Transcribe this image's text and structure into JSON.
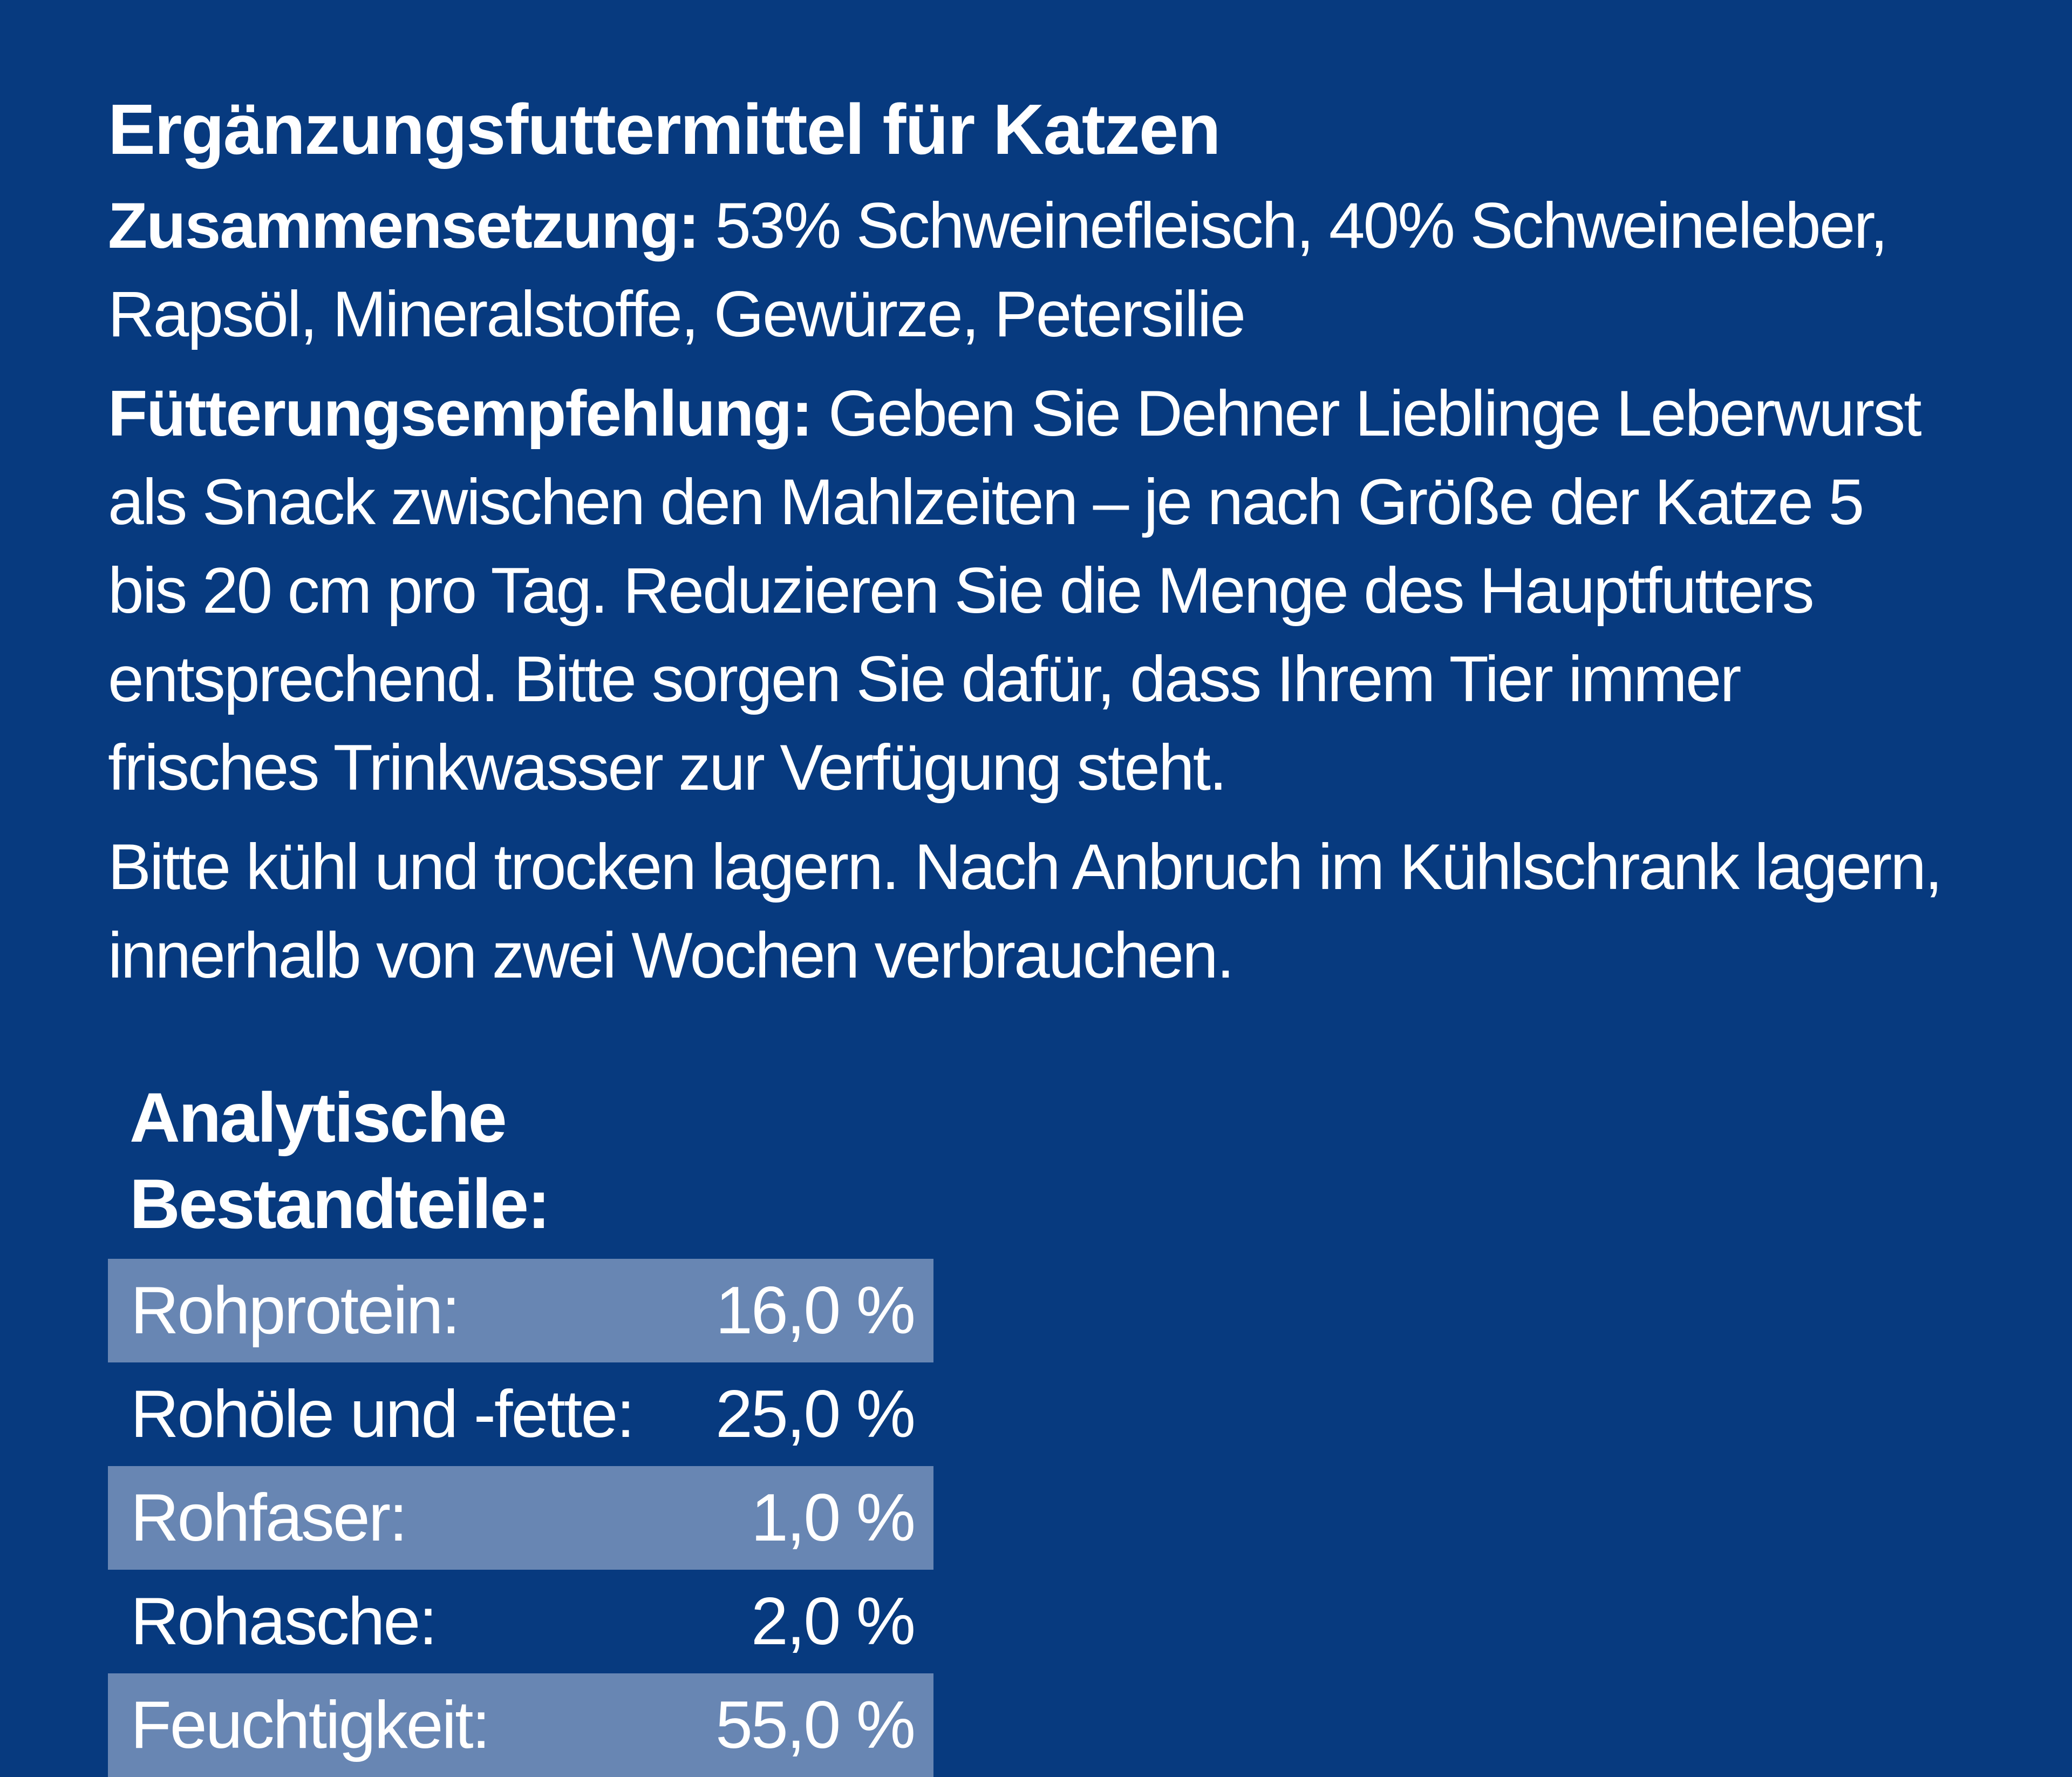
{
  "product_type": "Ergänzungsfuttermittel für Katzen",
  "composition": {
    "label": "Zusammensetzung:",
    "text": "53% Schweinefleisch, 40% Schweineleber, Rapsöl, Mineralstoffe, Gewürze, Petersilie"
  },
  "feeding": {
    "label": "Fütterungsempfehlung:",
    "text": "Geben Sie Dehner Lieblinge Leberwurst als Snack zwischen den Mahlzeiten – je nach Größe der Katze 5 bis 20 cm pro Tag. Reduzieren Sie die Menge des Hauptfutters entsprechend. Bitte sorgen Sie dafür, dass Ihrem Tier immer frisches Trinkwasser zur Verfügung steht."
  },
  "storage": "Bitte kühl und trocken lagern. Nach Anbruch im Kühlschrank lagern, innerhalb von zwei Wochen verbrauchen.",
  "analysis": {
    "heading": "Analytische Bestandteile:",
    "rows": [
      {
        "label": "Rohprotein:",
        "value": "16,0 %"
      },
      {
        "label": "Rohöle und -fette:",
        "value": "25,0 %"
      },
      {
        "label": "Rohfaser:",
        "value": "1,0 %"
      },
      {
        "label": "Rohasche:",
        "value": "2,0 %"
      },
      {
        "label": "Feuchtigkeit:",
        "value": "55,0 %"
      }
    ]
  },
  "colors": {
    "background": "#073A7F",
    "row_shade": "#6886B3",
    "text": "#FFFFFF"
  }
}
